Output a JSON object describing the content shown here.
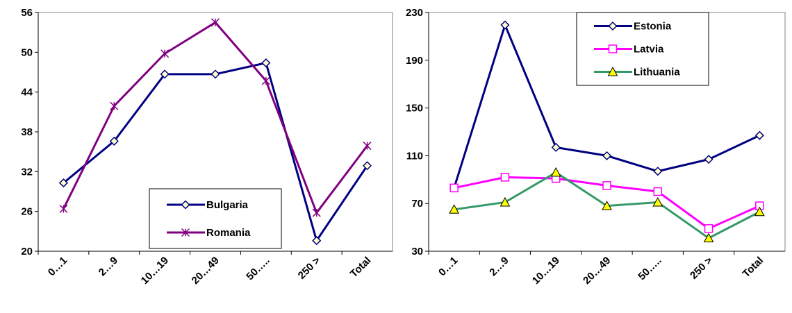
{
  "chart_data": [
    {
      "type": "line",
      "categories": [
        "0…1",
        "2…9",
        "10…19",
        "20…49",
        "50…..",
        "250 >",
        "Total"
      ],
      "series": [
        {
          "name": "Bulgaria",
          "color": "#000080",
          "marker": "diamond",
          "values": [
            30.3,
            36.6,
            46.7,
            46.7,
            48.4,
            21.6,
            32.9
          ]
        },
        {
          "name": "Romania",
          "color": "#800080",
          "marker": "star",
          "values": [
            26.4,
            41.9,
            49.8,
            54.5,
            45.7,
            25.8,
            35.9
          ]
        }
      ],
      "ylim": [
        20,
        56
      ],
      "yticks": [
        20,
        26,
        32,
        38,
        44,
        50,
        56
      ],
      "legend": "lower right"
    },
    {
      "type": "line",
      "categories": [
        "0…1",
        "2…9",
        "10…19",
        "20…49",
        "50…..",
        "250 >",
        "Total"
      ],
      "series": [
        {
          "name": "Estonia",
          "color": "#000080",
          "marker": "diamond",
          "values": [
            83,
            219.5,
            117,
            110,
            97,
            107,
            127
          ]
        },
        {
          "name": "Latvia",
          "color": "#ff00ff",
          "marker": "square",
          "values": [
            83,
            92,
            91,
            85,
            80,
            49,
            68
          ]
        },
        {
          "name": "Lithuania",
          "color": "#339966",
          "marker": "triangle",
          "values": [
            65,
            71,
            96,
            68,
            71,
            41,
            63
          ]
        }
      ],
      "ylim": [
        30,
        230
      ],
      "yticks": [
        30,
        70,
        110,
        150,
        190,
        230
      ],
      "legend": "upper right"
    }
  ]
}
